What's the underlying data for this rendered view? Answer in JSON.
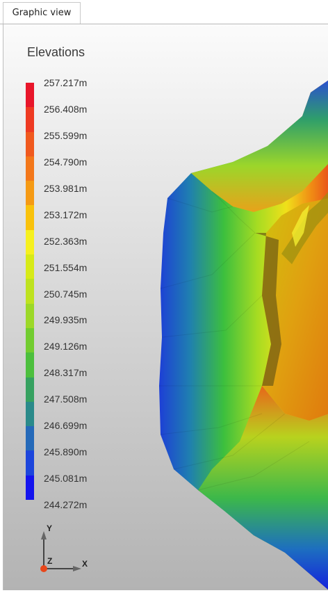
{
  "tabs": [
    {
      "label": "Graphic view"
    }
  ],
  "legend": {
    "title": "Elevations",
    "levels": [
      "257.217m",
      "256.408m",
      "255.599m",
      "254.790m",
      "253.981m",
      "253.172m",
      "252.363m",
      "251.554m",
      "250.745m",
      "249.935m",
      "249.126m",
      "248.317m",
      "247.508m",
      "246.699m",
      "245.890m",
      "245.081m",
      "244.272m"
    ],
    "colors": [
      "#e8162a",
      "#ee3a22",
      "#f0591e",
      "#f3771a",
      "#f59a14",
      "#f9c20c",
      "#f6f01f",
      "#d7ea18",
      "#bee21f",
      "#9cd828",
      "#72cc30",
      "#4cbf3d",
      "#36a160",
      "#2a8a8a",
      "#2569b9",
      "#1c45dc",
      "#1414ee"
    ]
  },
  "axes": {
    "y_label": "Y",
    "z_label": "Z",
    "x_label": "X"
  }
}
